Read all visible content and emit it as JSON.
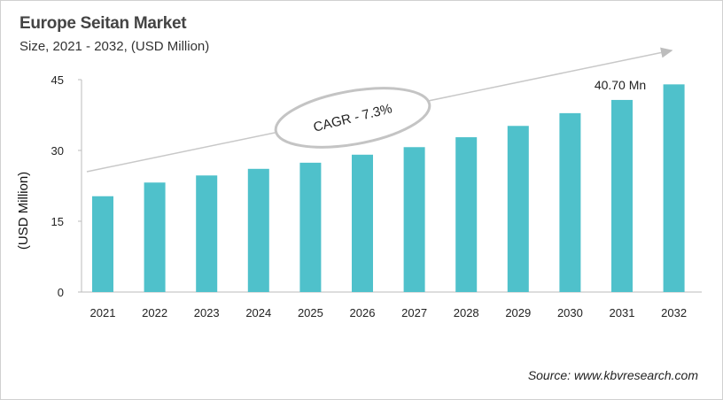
{
  "title": "Europe Seitan Market",
  "subtitle": "Size, 2021 - 2032, (USD Million)",
  "source": "Source: www.kbvresearch.com",
  "chart_data": {
    "type": "bar",
    "title": "Europe Seitan Market",
    "subtitle": "Size, 2021 - 2032, (USD Million)",
    "xlabel": "",
    "ylabel": "(USD Million)",
    "ylim": [
      0,
      45
    ],
    "yticks": [
      0,
      15,
      30,
      45
    ],
    "grid": false,
    "categories": [
      "2021",
      "2022",
      "2023",
      "2024",
      "2025",
      "2026",
      "2027",
      "2028",
      "2029",
      "2030",
      "2031",
      "2032"
    ],
    "values": [
      20.3,
      23.2,
      24.7,
      26.1,
      27.4,
      29.1,
      30.7,
      32.8,
      35.2,
      37.9,
      40.7,
      44.0
    ],
    "bar_color": "#4fc1cb",
    "annotations": {
      "cagr": "CAGR - 7.3%",
      "value_label": "40.70 Mn"
    }
  }
}
